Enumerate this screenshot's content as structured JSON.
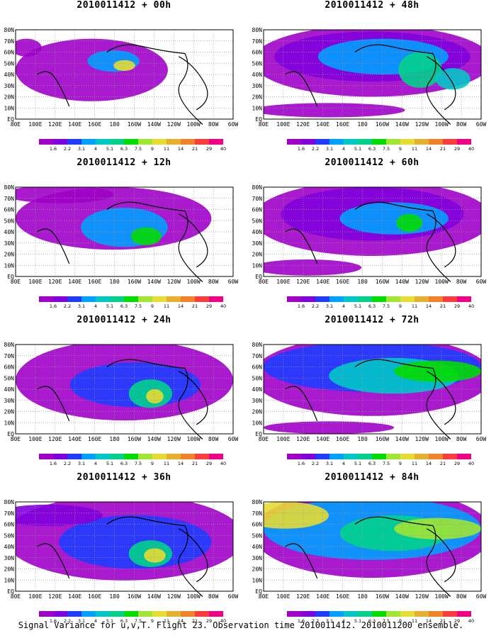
{
  "figure": {
    "caption": "Signal Variance for u,v,T. Flight 23. Observation time 2010011412. 2010011200 ensemble."
  },
  "panels": [
    {
      "title": "2010011412 + 00h"
    },
    {
      "title": "2010011412 + 48h"
    },
    {
      "title": "2010011412 + 12h"
    },
    {
      "title": "2010011412 + 60h"
    },
    {
      "title": "2010011412 + 24h"
    },
    {
      "title": "2010011412 + 72h"
    },
    {
      "title": "2010011412 + 36h"
    },
    {
      "title": "2010011412 + 84h"
    }
  ],
  "axes": {
    "lon_labels": [
      "80E",
      "100E",
      "120E",
      "140E",
      "160E",
      "180",
      "160W",
      "140W",
      "120W",
      "100W",
      "80W",
      "60W"
    ],
    "lat_labels": [
      "80N",
      "70N",
      "60N",
      "50N",
      "40N",
      "30N",
      "20N",
      "10N",
      "EQ"
    ]
  },
  "legend": {
    "levels": [
      "1.6",
      "2.2",
      "3.1",
      "4",
      "5.1",
      "6.3",
      "7.5",
      "9",
      "11",
      "14",
      "21",
      "29",
      "40"
    ],
    "colors": [
      "#a000c8",
      "#8200dc",
      "#1e3cff",
      "#00a0ff",
      "#00c8c8",
      "#00d28c",
      "#00dc00",
      "#a0e632",
      "#e6dc32",
      "#e6af2d",
      "#f08228",
      "#fa3c3c",
      "#f00082"
    ]
  }
}
